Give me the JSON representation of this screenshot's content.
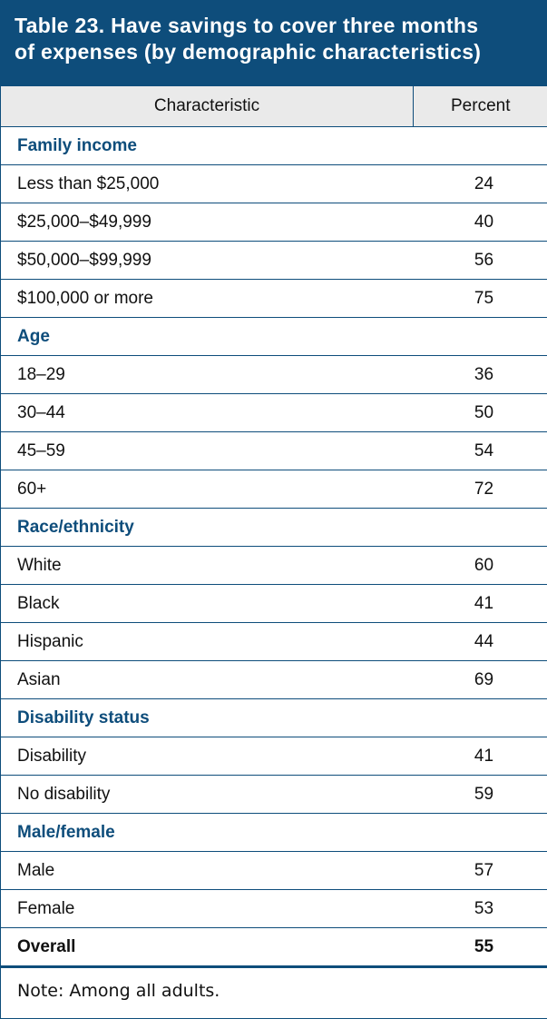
{
  "title": {
    "line1": "Table 23. Have savings to cover three months",
    "line2": "of expenses (by demographic characteristics)"
  },
  "table": {
    "headers": {
      "characteristic": "Characteristic",
      "percent": "Percent"
    },
    "sections": [
      {
        "name": "Family income",
        "rows": [
          {
            "label": "Less than $25,000",
            "value": "24"
          },
          {
            "label": "$25,000–$49,999",
            "value": "40"
          },
          {
            "label": "$50,000–$99,999",
            "value": "56"
          },
          {
            "label": "$100,000 or more",
            "value": "75"
          }
        ]
      },
      {
        "name": "Age",
        "rows": [
          {
            "label": "18–29",
            "value": "36"
          },
          {
            "label": "30–44",
            "value": "50"
          },
          {
            "label": "45–59",
            "value": "54"
          },
          {
            "label": "60+",
            "value": "72"
          }
        ]
      },
      {
        "name": "Race/ethnicity",
        "rows": [
          {
            "label": "White",
            "value": "60"
          },
          {
            "label": "Black",
            "value": "41"
          },
          {
            "label": "Hispanic",
            "value": "44"
          },
          {
            "label": "Asian",
            "value": "69"
          }
        ]
      },
      {
        "name": "Disability status",
        "rows": [
          {
            "label": "Disability",
            "value": "41"
          },
          {
            "label": "No disability",
            "value": "59"
          }
        ]
      },
      {
        "name": "Male/female",
        "rows": [
          {
            "label": "Male",
            "value": "57"
          },
          {
            "label": "Female",
            "value": "53"
          }
        ]
      }
    ],
    "overall": {
      "label": "Overall",
      "value": "55"
    }
  },
  "note": "Note: Among all adults.",
  "colors": {
    "accent": "#0e4d7b",
    "header_bg": "#eaeaea"
  }
}
